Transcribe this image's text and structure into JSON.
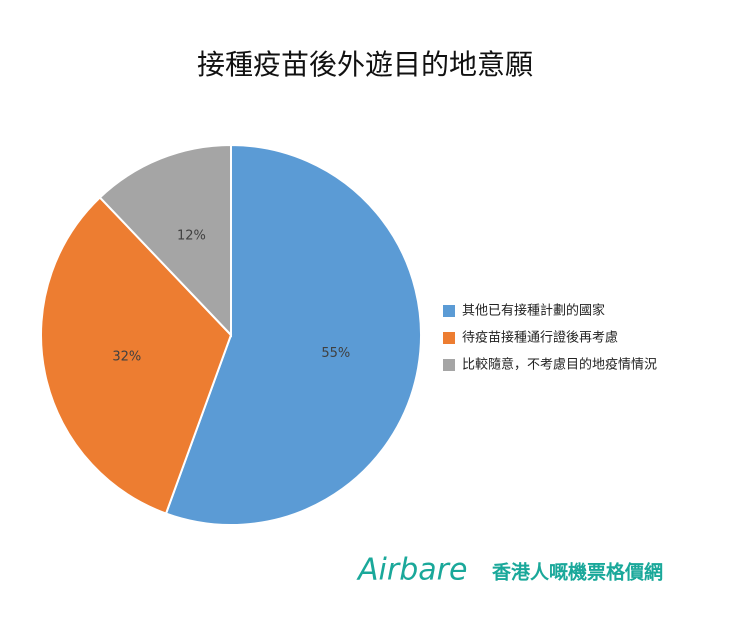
{
  "chart_data": {
    "type": "pie",
    "title": "接種疫苗後外遊目的地意願",
    "categories": [
      "其他已有接種計劃的國家",
      "待疫苗接種通行證後再考慮",
      "比較隨意，不考慮目的地疫情情況"
    ],
    "values": [
      55,
      32,
      12
    ],
    "value_labels": [
      "55%",
      "32%",
      "12%"
    ],
    "colors": [
      "#5b9bd5",
      "#ed7d31",
      "#a5a5a5"
    ],
    "legend": "right"
  },
  "watermark": {
    "brand": "Airbare",
    "tagline": "香港人嘅機票格價網"
  }
}
